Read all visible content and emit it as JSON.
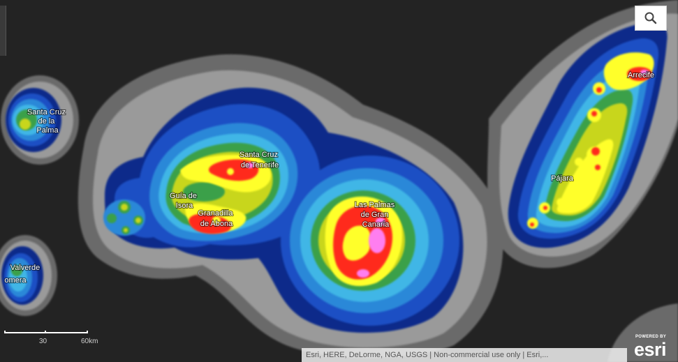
{
  "map": {
    "background": "#232323",
    "density_colors": [
      "#6b6b6b",
      "#9a9a9a",
      "#0c2a8a",
      "#1a4fc4",
      "#2b88d8",
      "#3fb6e6",
      "#3aa048",
      "#c8d61e",
      "#ffff2a",
      "#ff2a1e",
      "#ff7ef0"
    ],
    "labels": [
      {
        "name": "santa-cruz-de-la-palma",
        "lines": [
          "Santa Cruz",
          "de la",
          "Palma"
        ]
      },
      {
        "name": "valverde",
        "lines": [
          "Valverde"
        ]
      },
      {
        "name": "san-sebastian-de-la-gomera",
        "lines": [
          "omera"
        ]
      },
      {
        "name": "santa-cruz-de-tenerife",
        "lines": [
          "Santa Cruz",
          "de Tenerife"
        ]
      },
      {
        "name": "granadilla-de-abona",
        "lines": [
          "Granadilla",
          "de Abona"
        ]
      },
      {
        "name": "guia-de-isora",
        "lines": [
          "Guía de",
          "Isora"
        ]
      },
      {
        "name": "las-palmas-de-gran-canaria",
        "lines": [
          "Las Palmas",
          "de Gran",
          "Canaria"
        ]
      },
      {
        "name": "arrecife",
        "lines": [
          "Arrecife"
        ]
      },
      {
        "name": "pajara",
        "lines": [
          "Pájara"
        ]
      }
    ]
  },
  "controls": {
    "search_icon": "search-icon"
  },
  "scalebar": {
    "label_mid": "30",
    "label_end": "60km"
  },
  "attribution": {
    "text": "Esri, HERE, DeLorme, NGA, USGS | Non-commercial use only | Esri,..."
  },
  "logo": {
    "powered_by": "POWERED BY",
    "brand": "esri"
  }
}
